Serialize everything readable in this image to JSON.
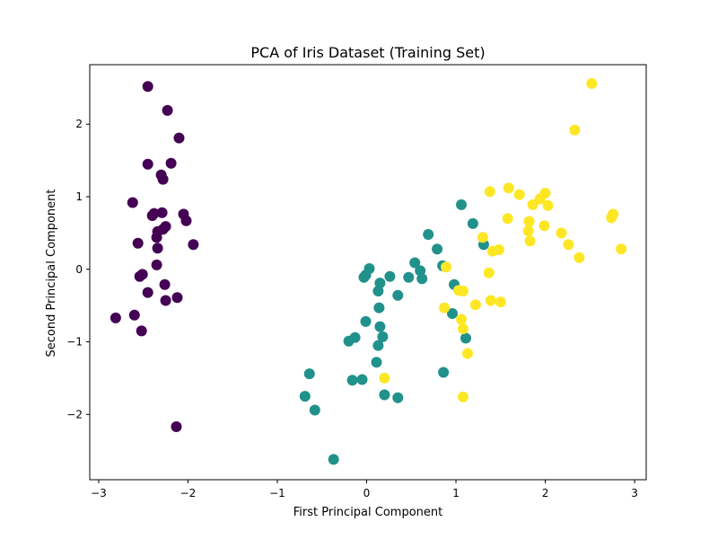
{
  "chart_data": {
    "type": "scatter",
    "title": "PCA of Iris Dataset (Training Set)",
    "xlabel": "First Principal Component",
    "ylabel": "Second Principal Component",
    "xlim": [
      -3.1,
      3.13
    ],
    "ylim": [
      -2.9,
      2.82
    ],
    "xticks": [
      -3,
      -2,
      -1,
      0,
      1,
      2,
      3
    ],
    "yticks": [
      -2,
      -1,
      0,
      1,
      2
    ],
    "xtick_labels": [
      "−3",
      "−2",
      "−1",
      "0",
      "1",
      "2",
      "3"
    ],
    "ytick_labels": [
      "−2",
      "−1",
      "0",
      "1",
      "2"
    ],
    "grid": false,
    "series": [
      {
        "color": "#440154",
        "points": [
          [
            -2.45,
            2.52
          ],
          [
            -2.23,
            2.19
          ],
          [
            -2.1,
            1.81
          ],
          [
            -2.45,
            1.45
          ],
          [
            -2.19,
            1.46
          ],
          [
            -2.3,
            1.3
          ],
          [
            -2.28,
            1.24
          ],
          [
            -2.62,
            0.92
          ],
          [
            -2.29,
            0.78
          ],
          [
            -2.38,
            0.77
          ],
          [
            -2.4,
            0.74
          ],
          [
            -2.05,
            0.76
          ],
          [
            -2.02,
            0.67
          ],
          [
            -2.25,
            0.59
          ],
          [
            -2.28,
            0.55
          ],
          [
            -2.34,
            0.52
          ],
          [
            -2.35,
            0.44
          ],
          [
            -2.56,
            0.36
          ],
          [
            -1.94,
            0.34
          ],
          [
            -2.34,
            0.29
          ],
          [
            -2.35,
            0.06
          ],
          [
            -2.51,
            -0.07
          ],
          [
            -2.54,
            -0.1
          ],
          [
            -2.26,
            -0.21
          ],
          [
            -2.45,
            -0.32
          ],
          [
            -2.12,
            -0.39
          ],
          [
            -2.25,
            -0.43
          ],
          [
            -2.6,
            -0.63
          ],
          [
            -2.81,
            -0.67
          ],
          [
            -2.52,
            -0.85
          ],
          [
            -2.13,
            -2.17
          ]
        ]
      },
      {
        "color": "#21918c",
        "points": [
          [
            1.06,
            0.89
          ],
          [
            0.69,
            0.48
          ],
          [
            1.19,
            0.63
          ],
          [
            0.79,
            0.28
          ],
          [
            1.31,
            0.34
          ],
          [
            0.54,
            0.09
          ],
          [
            0.85,
            0.05
          ],
          [
            0.03,
            0.01
          ],
          [
            0.6,
            -0.02
          ],
          [
            0.26,
            -0.1
          ],
          [
            0.47,
            -0.11
          ],
          [
            -0.01,
            -0.08
          ],
          [
            0.62,
            -0.13
          ],
          [
            0.15,
            -0.19
          ],
          [
            0.98,
            -0.21
          ],
          [
            -0.03,
            -0.11
          ],
          [
            0.13,
            -0.3
          ],
          [
            0.35,
            -0.36
          ],
          [
            0.14,
            -0.53
          ],
          [
            0.96,
            -0.61
          ],
          [
            -0.01,
            -0.72
          ],
          [
            0.15,
            -0.79
          ],
          [
            0.18,
            -0.93
          ],
          [
            1.11,
            -0.95
          ],
          [
            -0.2,
            -0.99
          ],
          [
            -0.13,
            -0.94
          ],
          [
            0.13,
            -1.05
          ],
          [
            0.11,
            -1.28
          ],
          [
            0.86,
            -1.42
          ],
          [
            -0.64,
            -1.44
          ],
          [
            -0.16,
            -1.53
          ],
          [
            -0.05,
            -1.52
          ],
          [
            0.2,
            -1.73
          ],
          [
            0.35,
            -1.77
          ],
          [
            -0.69,
            -1.75
          ],
          [
            -0.58,
            -1.94
          ],
          [
            -0.37,
            -2.62
          ]
        ]
      },
      {
        "color": "#fde725",
        "points": [
          [
            2.52,
            2.56
          ],
          [
            2.33,
            1.92
          ],
          [
            1.38,
            1.07
          ],
          [
            1.59,
            1.12
          ],
          [
            1.71,
            1.03
          ],
          [
            1.94,
            0.97
          ],
          [
            2.0,
            1.05
          ],
          [
            1.86,
            0.89
          ],
          [
            2.03,
            0.88
          ],
          [
            1.58,
            0.7
          ],
          [
            1.82,
            0.66
          ],
          [
            1.99,
            0.6
          ],
          [
            1.81,
            0.53
          ],
          [
            2.18,
            0.5
          ],
          [
            2.76,
            0.76
          ],
          [
            2.74,
            0.71
          ],
          [
            1.3,
            0.44
          ],
          [
            1.83,
            0.39
          ],
          [
            2.26,
            0.34
          ],
          [
            2.85,
            0.28
          ],
          [
            1.41,
            0.25
          ],
          [
            1.48,
            0.27
          ],
          [
            2.38,
            0.16
          ],
          [
            0.89,
            0.03
          ],
          [
            1.37,
            -0.05
          ],
          [
            1.03,
            -0.29
          ],
          [
            1.08,
            -0.3
          ],
          [
            1.39,
            -0.43
          ],
          [
            1.5,
            -0.45
          ],
          [
            1.22,
            -0.49
          ],
          [
            0.87,
            -0.53
          ],
          [
            1.06,
            -0.69
          ],
          [
            1.08,
            -0.82
          ],
          [
            1.13,
            -1.16
          ],
          [
            0.2,
            -1.5
          ],
          [
            1.08,
            -1.76
          ]
        ]
      }
    ]
  }
}
